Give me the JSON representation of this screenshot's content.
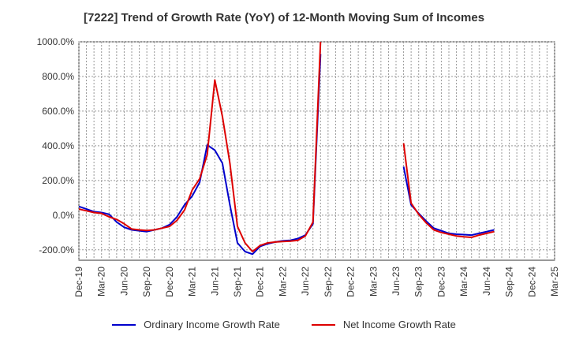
{
  "chart_data": {
    "type": "line",
    "title": "[7222]  Trend of Growth Rate (YoY) of 12-Month Moving Sum of Incomes",
    "xlabel": "",
    "ylabel": "",
    "ylim": [
      -260,
      1000
    ],
    "yticks": [
      -200,
      0,
      200,
      400,
      600,
      800,
      1000
    ],
    "ytick_labels": [
      "-200.0%",
      "0.0%",
      "200.0%",
      "400.0%",
      "600.0%",
      "800.0%",
      "1000.0%"
    ],
    "x_tick_labels": [
      "Dec-19",
      "Mar-20",
      "Jun-20",
      "Sep-20",
      "Dec-20",
      "Mar-21",
      "Jun-21",
      "Sep-21",
      "Dec-21",
      "Mar-22",
      "Jun-22",
      "Sep-22",
      "Dec-22",
      "Mar-23",
      "Jun-23",
      "Sep-23",
      "Dec-23",
      "Mar-24",
      "Jun-24",
      "Sep-24",
      "Dec-24",
      "Mar-25"
    ],
    "grid": true,
    "legend_position": "bottom",
    "series": [
      {
        "name": "Ordinary Income Growth Rate",
        "color": "#0000cc",
        "points": [
          [
            0,
            50
          ],
          [
            1,
            35
          ],
          [
            2,
            20
          ],
          [
            3,
            15
          ],
          [
            4,
            5
          ],
          [
            5,
            -40
          ],
          [
            6,
            -70
          ],
          [
            7,
            -85
          ],
          [
            8,
            -90
          ],
          [
            9,
            -95
          ],
          [
            10,
            -85
          ],
          [
            11,
            -75
          ],
          [
            12,
            -55
          ],
          [
            13,
            -10
          ],
          [
            14,
            60
          ],
          [
            15,
            110
          ],
          [
            16,
            190
          ],
          [
            17,
            405
          ],
          [
            18,
            375
          ],
          [
            19,
            300
          ],
          [
            20,
            60
          ],
          [
            21,
            -160
          ],
          [
            22,
            -210
          ],
          [
            23,
            -225
          ],
          [
            24,
            -180
          ],
          [
            25,
            -165
          ],
          [
            26,
            -155
          ],
          [
            27,
            -148
          ],
          [
            28,
            -145
          ],
          [
            29,
            -135
          ],
          [
            30,
            -115
          ],
          [
            31,
            -50
          ],
          [
            32,
            930
          ],
          [
            43,
            280
          ],
          [
            44,
            60
          ],
          [
            45,
            10
          ],
          [
            46,
            -35
          ],
          [
            47,
            -75
          ],
          [
            48,
            -90
          ],
          [
            49,
            -105
          ],
          [
            50,
            -110
          ],
          [
            51,
            -112
          ],
          [
            52,
            -115
          ],
          [
            53,
            -105
          ],
          [
            54,
            -95
          ],
          [
            55,
            -85
          ]
        ]
      },
      {
        "name": "Net Income Growth Rate",
        "color": "#dd0000",
        "points": [
          [
            0,
            35
          ],
          [
            1,
            25
          ],
          [
            2,
            15
          ],
          [
            3,
            10
          ],
          [
            4,
            -10
          ],
          [
            5,
            -25
          ],
          [
            6,
            -50
          ],
          [
            7,
            -80
          ],
          [
            8,
            -85
          ],
          [
            9,
            -88
          ],
          [
            10,
            -85
          ],
          [
            11,
            -75
          ],
          [
            12,
            -65
          ],
          [
            13,
            -30
          ],
          [
            14,
            30
          ],
          [
            15,
            145
          ],
          [
            16,
            210
          ],
          [
            17,
            350
          ],
          [
            18,
            780
          ],
          [
            19,
            570
          ],
          [
            20,
            300
          ],
          [
            21,
            -65
          ],
          [
            22,
            -160
          ],
          [
            23,
            -210
          ],
          [
            24,
            -175
          ],
          [
            25,
            -160
          ],
          [
            26,
            -155
          ],
          [
            27,
            -152
          ],
          [
            28,
            -150
          ],
          [
            29,
            -145
          ],
          [
            30,
            -120
          ],
          [
            31,
            -40
          ],
          [
            32,
            1000
          ],
          [
            43,
            415
          ],
          [
            44,
            70
          ],
          [
            45,
            5
          ],
          [
            46,
            -45
          ],
          [
            47,
            -85
          ],
          [
            48,
            -100
          ],
          [
            49,
            -110
          ],
          [
            50,
            -120
          ],
          [
            51,
            -125
          ],
          [
            52,
            -128
          ],
          [
            53,
            -115
          ],
          [
            54,
            -105
          ],
          [
            55,
            -95
          ]
        ]
      }
    ]
  }
}
